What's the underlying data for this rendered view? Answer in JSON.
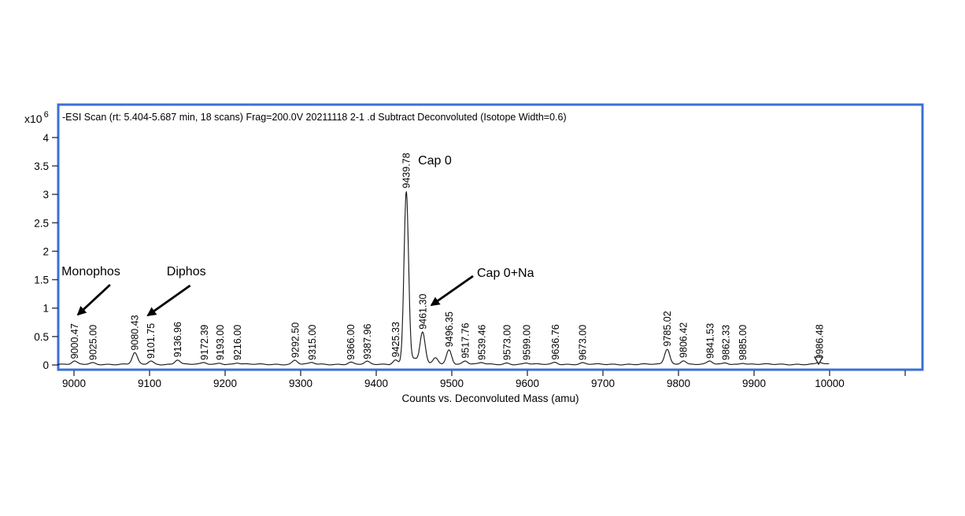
{
  "colors": {
    "frame": "#3a70d4",
    "trace": "#1a1a1a",
    "text": "#000000"
  },
  "chart_data": {
    "type": "line",
    "title": "-ESI Scan (rt: 5.404-5.687 min, 18 scans) Frag=200.0V 20211118 2-1 .d   Subtract Deconvoluted (Isotope Width=0.6)",
    "xlabel": "Counts vs. Deconvoluted Mass (amu)",
    "y_multiplier": "x10",
    "y_exponent": "6",
    "x_ticks": [
      9000,
      9100,
      9200,
      9300,
      9400,
      9500,
      9600,
      9700,
      9800,
      9900,
      10000
    ],
    "x_unlabeled_tick": 10100,
    "y_ticks": [
      0,
      0.5,
      1,
      1.5,
      2,
      2.5,
      3,
      3.5,
      4
    ],
    "x_range": [
      8978,
      10000
    ],
    "ylim": [
      0,
      4.3
    ],
    "grid": "off",
    "legend": "none",
    "peaks": [
      {
        "mass": 9000.47,
        "intensity": 0.05,
        "label": "9000.47"
      },
      {
        "mass": 9025.0,
        "intensity": 0.025,
        "label": "9025.00"
      },
      {
        "mass": 9080.43,
        "intensity": 0.2,
        "label": "9080.43"
      },
      {
        "mass": 9101.75,
        "intensity": 0.055,
        "label": "9101.75"
      },
      {
        "mass": 9136.96,
        "intensity": 0.08,
        "label": "9136.96"
      },
      {
        "mass": 9172.39,
        "intensity": 0.03,
        "label": "9172.39"
      },
      {
        "mass": 9193.0,
        "intensity": 0.025,
        "label": "9193.00"
      },
      {
        "mass": 9216.0,
        "intensity": 0.025,
        "label": "9216.00"
      },
      {
        "mass": 9292.5,
        "intensity": 0.07,
        "label": "9292.50"
      },
      {
        "mass": 9315.0,
        "intensity": 0.03,
        "label": "9315.00"
      },
      {
        "mass": 9366.0,
        "intensity": 0.035,
        "label": "9366.00"
      },
      {
        "mass": 9387.96,
        "intensity": 0.045,
        "label": "9387.96"
      },
      {
        "mass": 9425.33,
        "intensity": 0.08,
        "label": "9425.33"
      },
      {
        "mass": 9439.78,
        "intensity": 3.05,
        "label": "9439.78",
        "sigma": 3.0
      },
      {
        "mass": 9450.6,
        "intensity": 0.09,
        "label": ""
      },
      {
        "mass": 9461.3,
        "intensity": 0.57,
        "label": "9461.30"
      },
      {
        "mass": 9478.5,
        "intensity": 0.12,
        "label": ""
      },
      {
        "mass": 9496.35,
        "intensity": 0.26,
        "label": "9496.35"
      },
      {
        "mass": 9517.76,
        "intensity": 0.06,
        "label": "9517.76"
      },
      {
        "mass": 9539.46,
        "intensity": 0.03,
        "label": "9539.46"
      },
      {
        "mass": 9573.0,
        "intensity": 0.022,
        "label": "9573.00"
      },
      {
        "mass": 9599.0,
        "intensity": 0.022,
        "label": "9599.00"
      },
      {
        "mass": 9636.76,
        "intensity": 0.035,
        "label": "9636.76"
      },
      {
        "mass": 9673.0,
        "intensity": 0.022,
        "label": "9673.00"
      },
      {
        "mass": 9785.02,
        "intensity": 0.27,
        "label": "9785.02"
      },
      {
        "mass": 9806.42,
        "intensity": 0.07,
        "label": "9806.42"
      },
      {
        "mass": 9841.53,
        "intensity": 0.055,
        "label": "9841.53"
      },
      {
        "mass": 9862.33,
        "intensity": 0.028,
        "label": "9862.33"
      },
      {
        "mass": 9885.0,
        "intensity": 0.025,
        "label": "9885.00"
      },
      {
        "mass": 9986.48,
        "intensity": 0.035,
        "label": "9986.48",
        "marker": "open-triangle"
      }
    ],
    "annotations": [
      {
        "text": "Monophos",
        "text_pos": [
          8983.4,
          1.577
        ],
        "arrow": {
          "from": [
            9047.8,
            1.411
          ],
          "to": [
            9005.2,
            0.885
          ]
        }
      },
      {
        "text": "Diphos",
        "text_pos": [
          9122.7,
          1.577
        ],
        "arrow": {
          "from": [
            9153.8,
            1.397
          ],
          "to": [
            9097.7,
            0.871
          ]
        }
      },
      {
        "text": "Cap 0",
        "text_pos": [
          9455.3,
          3.527
        ],
        "arrow": null
      },
      {
        "text": "Cap 0+Na",
        "text_pos": [
          9533.3,
          1.549
        ],
        "arrow": {
          "from": [
            9528.1,
            1.563
          ],
          "to": [
            9473.0,
            1.051
          ]
        }
      }
    ]
  }
}
